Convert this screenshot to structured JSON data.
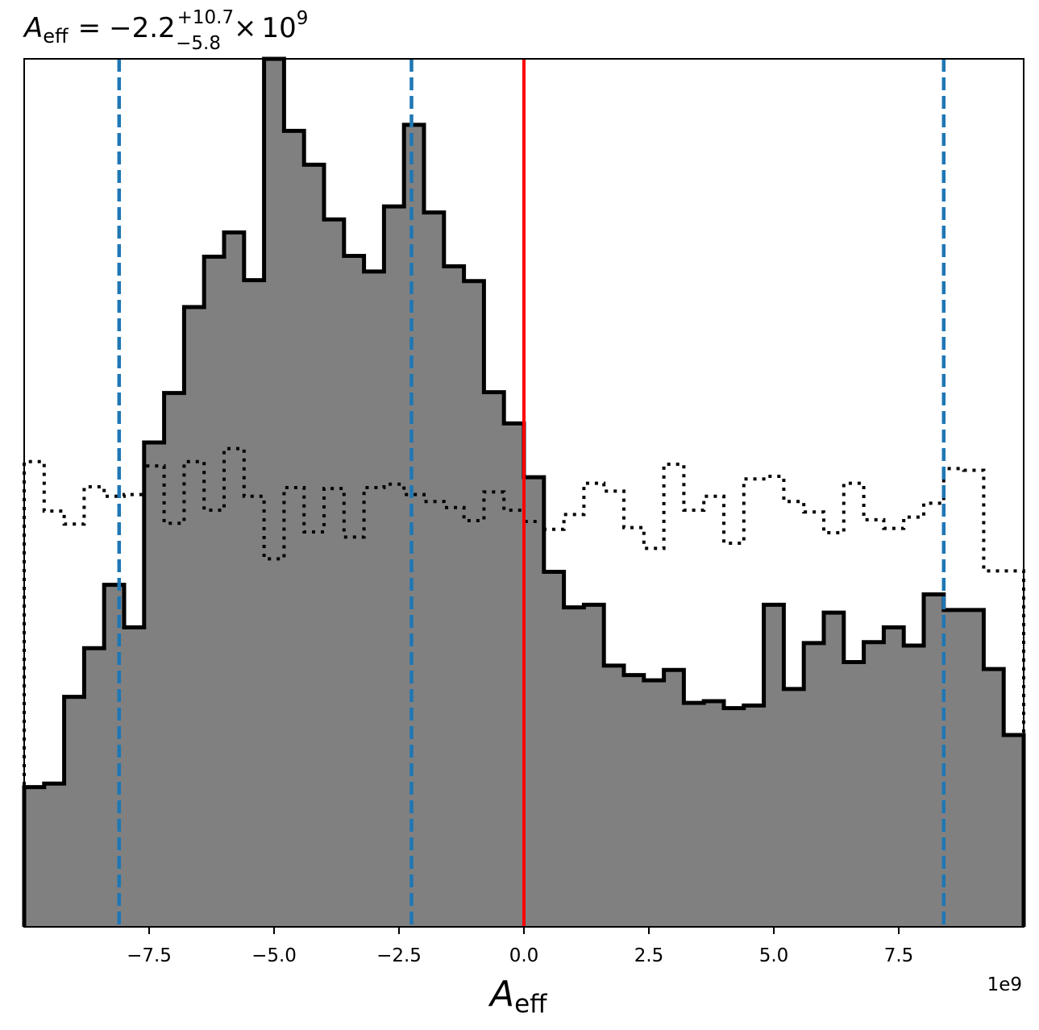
{
  "chart_data": {
    "type": "histogram",
    "title": {
      "symbol": "A",
      "symbol_sub": "eff",
      "equals": "=",
      "median": "−2.2",
      "upper_err": "+10.7",
      "lower_err": "−5.8",
      "times": "×",
      "base": "10",
      "exponent": "9"
    },
    "xlabel": {
      "symbol": "A",
      "sub": "eff"
    },
    "x_offset_label": "1e9",
    "xlim": [
      -10.0,
      10.0
    ],
    "ylim": [
      0,
      1.0
    ],
    "x_ticks": [
      -7.5,
      -5.0,
      -2.5,
      0.0,
      2.5,
      5.0,
      7.5
    ],
    "x_tick_labels": [
      "−7.5",
      "−5.0",
      "−2.5",
      "0.0",
      "2.5",
      "5.0",
      "7.5"
    ],
    "show_y_ticks": false,
    "grid": false,
    "bin_edges": [
      -10.0,
      -9.6,
      -9.2,
      -8.8,
      -8.4,
      -8.0,
      -7.6,
      -7.2,
      -6.8,
      -6.4,
      -6.0,
      -5.6,
      -5.2,
      -4.8,
      -4.4,
      -4.0,
      -3.6,
      -3.2,
      -2.8,
      -2.4,
      -2.0,
      -1.6,
      -1.2,
      -0.8,
      -0.4,
      0.0,
      0.4,
      0.8,
      1.2,
      1.6,
      2.0,
      2.4,
      2.8,
      3.2,
      3.6,
      4.0,
      4.4,
      4.8,
      5.2,
      5.6,
      6.0,
      6.4,
      6.8,
      7.2,
      7.6,
      8.0,
      8.4,
      8.8,
      9.2,
      9.6,
      10.0
    ],
    "series": [
      {
        "role": "posterior",
        "style": "filled step",
        "fill": "#808080",
        "edge": "#000000",
        "values": [
          0.161,
          0.165,
          0.265,
          0.321,
          0.394,
          0.345,
          0.558,
          0.615,
          0.714,
          0.772,
          0.8,
          0.745,
          1.0,
          0.917,
          0.878,
          0.815,
          0.773,
          0.755,
          0.83,
          0.924,
          0.823,
          0.761,
          0.744,
          0.616,
          0.58,
          0.518,
          0.409,
          0.368,
          0.371,
          0.301,
          0.29,
          0.284,
          0.296,
          0.258,
          0.26,
          0.252,
          0.255,
          0.371,
          0.274,
          0.327,
          0.362,
          0.305,
          0.328,
          0.345,
          0.324,
          0.383,
          0.365,
          0.365,
          0.297,
          0.221
        ]
      },
      {
        "role": "prior",
        "style": "dotted step",
        "edge": "#000000",
        "values": [
          0.536,
          0.479,
          0.464,
          0.507,
          0.496,
          0.498,
          0.531,
          0.465,
          0.536,
          0.48,
          0.551,
          0.496,
          0.424,
          0.506,
          0.455,
          0.505,
          0.449,
          0.506,
          0.51,
          0.498,
          0.49,
          0.483,
          0.468,
          0.501,
          0.48,
          0.467,
          0.458,
          0.475,
          0.511,
          0.502,
          0.46,
          0.436,
          0.533,
          0.48,
          0.496,
          0.442,
          0.516,
          0.519,
          0.49,
          0.478,
          0.454,
          0.511,
          0.469,
          0.459,
          0.472,
          0.488,
          0.528,
          0.526,
          0.41,
          0.41
        ]
      }
    ],
    "vlines": [
      {
        "role": "credible-interval",
        "x": -8.1,
        "color": "#1f77b4",
        "style": "dashed"
      },
      {
        "role": "median",
        "x": -2.25,
        "color": "#1f77b4",
        "style": "dashed"
      },
      {
        "role": "credible-interval",
        "x": 8.4,
        "color": "#1f77b4",
        "style": "dashed"
      },
      {
        "role": "reference",
        "x": 0.0,
        "color": "#ff0000",
        "style": "solid"
      }
    ]
  }
}
